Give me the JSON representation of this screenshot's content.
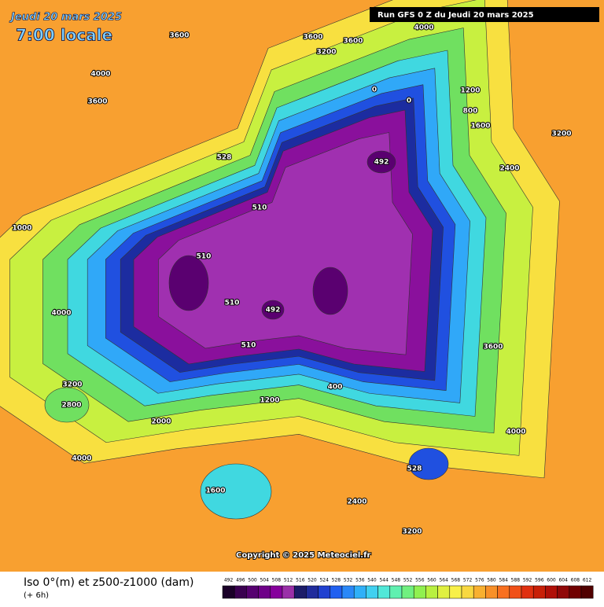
{
  "header": {
    "date": "Jeudi 20 mars 2025",
    "time": "7:00 locale",
    "run": "Run GFS 0 Z du Jeudi 20 mars 2025"
  },
  "copyright": "Copyright © 2025 Meteociel.fr",
  "legend": {
    "title": "Iso 0°(m) et z500-z1000 (dam)",
    "subtitle": "(+ 6h)",
    "values": [
      492,
      496,
      500,
      504,
      508,
      512,
      516,
      520,
      524,
      528,
      532,
      536,
      540,
      544,
      548,
      552,
      556,
      560,
      564,
      568,
      572,
      576,
      580,
      584,
      588,
      592,
      596,
      600,
      604,
      608,
      612
    ],
    "colors": [
      "#1a0028",
      "#3a0050",
      "#560070",
      "#6e0088",
      "#86009c",
      "#9a30a8",
      "#1c1c68",
      "#202c9c",
      "#2040d0",
      "#2060f0",
      "#2a88f8",
      "#30b0f8",
      "#40d0f0",
      "#50e8d8",
      "#60f0b0",
      "#70f080",
      "#90f050",
      "#b8f040",
      "#e0f040",
      "#f8f048",
      "#f8d840",
      "#f8b030",
      "#f89028",
      "#f87020",
      "#f05018",
      "#e03010",
      "#c82008",
      "#b01008",
      "#900808",
      "#700000",
      "#500000"
    ]
  },
  "map": {
    "labels": [
      "3600",
      "3600",
      "3600",
      "4000",
      "3200",
      "4000",
      "3600",
      "1200",
      "800",
      "1600",
      "2400",
      "3200",
      "492",
      "528",
      "510",
      "510",
      "510",
      "492",
      "510",
      "0",
      "0",
      "400",
      "1200",
      "2000",
      "2800",
      "3200",
      "4000",
      "1600",
      "2400",
      "528",
      "3200",
      "4000",
      "3600",
      "1000",
      "4000"
    ]
  }
}
